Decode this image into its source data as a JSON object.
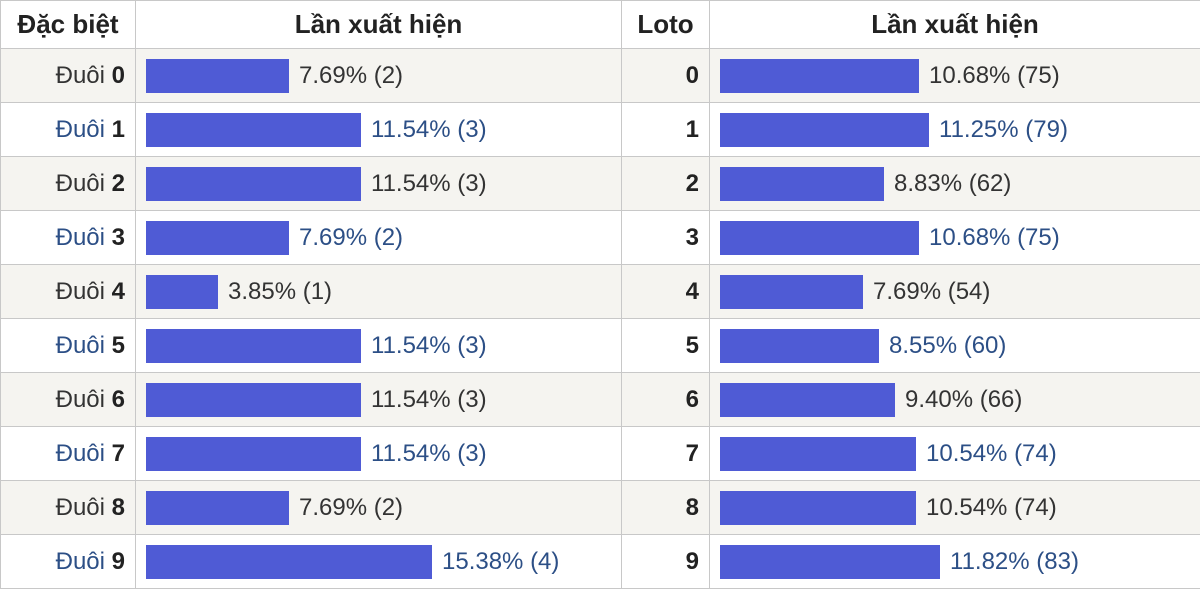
{
  "header": {
    "dac_biet": "Đặc biệt",
    "lan_xuat_hien_left": "Lần xuất hiện",
    "loto": "Loto",
    "lan_xuat_hien_right": "Lần xuất hiện"
  },
  "colors": {
    "bar": "#4f5bd5",
    "link_text": "#2c4f86",
    "row_alt": "#f5f4f0",
    "grid": "#c8c8c8"
  },
  "chart_data": [
    {
      "type": "bar",
      "title": "",
      "xlabel": "Đặc biệt",
      "ylabel": "Lần xuất hiện",
      "label_prefix": "Đuôi",
      "categories": [
        "0",
        "1",
        "2",
        "3",
        "4",
        "5",
        "6",
        "7",
        "8",
        "9"
      ],
      "values": [
        7.69,
        11.54,
        11.54,
        7.69,
        3.85,
        11.54,
        11.54,
        11.54,
        7.69,
        15.38
      ],
      "counts": [
        2,
        3,
        3,
        2,
        1,
        3,
        3,
        3,
        2,
        4
      ],
      "value_labels": [
        "7.69% (2)",
        "11.54% (3)",
        "11.54% (3)",
        "7.69% (2)",
        "3.85% (1)",
        "11.54% (3)",
        "11.54% (3)",
        "11.54% (3)",
        "7.69% (2)",
        "15.38% (4)"
      ],
      "orientation": "horizontal"
    },
    {
      "type": "bar",
      "title": "",
      "xlabel": "Loto",
      "ylabel": "Lần xuất hiện",
      "categories": [
        "0",
        "1",
        "2",
        "3",
        "4",
        "5",
        "6",
        "7",
        "8",
        "9"
      ],
      "values": [
        10.68,
        11.25,
        8.83,
        10.68,
        7.69,
        8.55,
        9.4,
        10.54,
        10.54,
        11.82
      ],
      "counts": [
        75,
        79,
        62,
        75,
        54,
        60,
        66,
        74,
        74,
        83
      ],
      "value_labels": [
        "10.68% (75)",
        "11.25% (79)",
        "8.83% (62)",
        "10.68% (75)",
        "7.69% (54)",
        "8.55% (60)",
        "9.40% (66)",
        "10.54% (74)",
        "10.54% (74)",
        "11.82% (83)"
      ],
      "orientation": "horizontal"
    }
  ]
}
